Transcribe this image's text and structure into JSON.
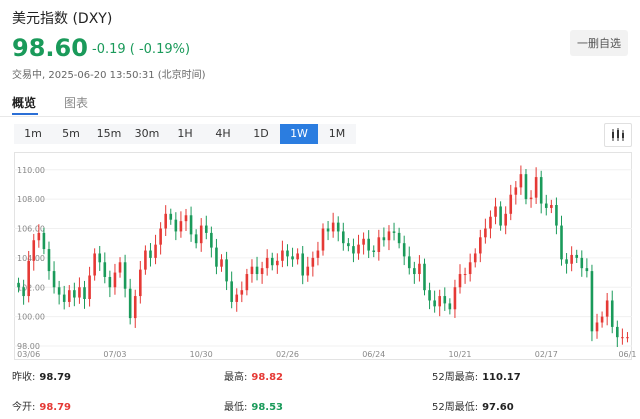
{
  "header": {
    "title": "美元指数 (DXY)",
    "price": "98.60",
    "change": "-0.19 ( -0.19%)",
    "status": "交易中, 2025-06-20 13:50:31 (北京时间)",
    "watch_button": "一删自选"
  },
  "tabs": [
    {
      "label": "概览",
      "active": true
    },
    {
      "label": "图表",
      "active": false
    }
  ],
  "periods": [
    {
      "label": "1m",
      "active": false
    },
    {
      "label": "5m",
      "active": false
    },
    {
      "label": "15m",
      "active": false
    },
    {
      "label": "30m",
      "active": false
    },
    {
      "label": "1H",
      "active": false
    },
    {
      "label": "4H",
      "active": false
    },
    {
      "label": "1D",
      "active": false
    },
    {
      "label": "1W",
      "active": true
    },
    {
      "label": "1M",
      "active": false
    }
  ],
  "colors": {
    "up": "#e53935",
    "down": "#1a9a5a",
    "accent": "#2b7de0"
  },
  "chart_data": {
    "type": "candlestick",
    "y_ticks": [
      "98.00",
      "100.00",
      "102.00",
      "104.00",
      "106.00",
      "108.00",
      "110.00"
    ],
    "ylim": [
      98,
      110.8
    ],
    "x_ticks": [
      {
        "label": "03/06",
        "index": 2
      },
      {
        "label": "07/03",
        "index": 19
      },
      {
        "label": "10/30",
        "index": 36
      },
      {
        "label": "02/26",
        "index": 53
      },
      {
        "label": "06/24",
        "index": 70
      },
      {
        "label": "10/21",
        "index": 87
      },
      {
        "label": "02/17",
        "index": 104
      },
      {
        "label": "06/1",
        "index": 120
      }
    ],
    "closes": [
      102.0,
      101.4,
      103.8,
      105.2,
      105.7,
      104.6,
      103.1,
      102.0,
      101.5,
      101.0,
      101.8,
      101.3,
      102.0,
      101.2,
      102.8,
      104.3,
      103.7,
      102.7,
      102.0,
      103.0,
      103.7,
      101.9,
      99.9,
      101.4,
      103.2,
      104.5,
      104.0,
      104.9,
      106.0,
      107.0,
      106.6,
      105.8,
      106.5,
      106.9,
      105.6,
      105.0,
      106.2,
      105.7,
      104.7,
      103.4,
      103.9,
      102.4,
      101.0,
      101.5,
      101.8,
      102.9,
      103.4,
      102.9,
      103.3,
      104.0,
      103.5,
      103.8,
      104.5,
      104.1,
      103.9,
      104.3,
      102.8,
      103.4,
      104.0,
      104.5,
      106.0,
      105.8,
      106.4,
      105.8,
      105.0,
      104.8,
      104.3,
      104.9,
      105.3,
      104.5,
      104.4,
      105.4,
      105.2,
      105.8,
      105.7,
      105.0,
      104.1,
      103.3,
      102.9,
      103.6,
      101.8,
      101.1,
      100.7,
      101.4,
      100.9,
      100.5,
      102.0,
      102.9,
      102.9,
      103.7,
      104.3,
      105.4,
      106.0,
      106.8,
      107.5,
      106.2,
      107.0,
      108.3,
      108.8,
      109.7,
      108.0,
      108.1,
      109.5,
      107.7,
      107.4,
      107.6,
      106.2,
      103.9,
      103.6,
      104.2,
      104.0,
      103.3,
      103.1,
      99.0,
      99.6,
      100.0,
      101.1,
      99.3,
      98.6,
      98.6,
      98.6
    ]
  },
  "stats": [
    {
      "label": "昨收:",
      "value": "98.79",
      "tone": "dark"
    },
    {
      "label": "最高:",
      "value": "98.82",
      "tone": "up"
    },
    {
      "label": "52周最高:",
      "value": "110.17",
      "tone": "dark"
    },
    {
      "label": "今开:",
      "value": "98.79",
      "tone": "up"
    },
    {
      "label": "最低:",
      "value": "98.53",
      "tone": "down"
    },
    {
      "label": "52周最低:",
      "value": "97.60",
      "tone": "dark"
    }
  ]
}
